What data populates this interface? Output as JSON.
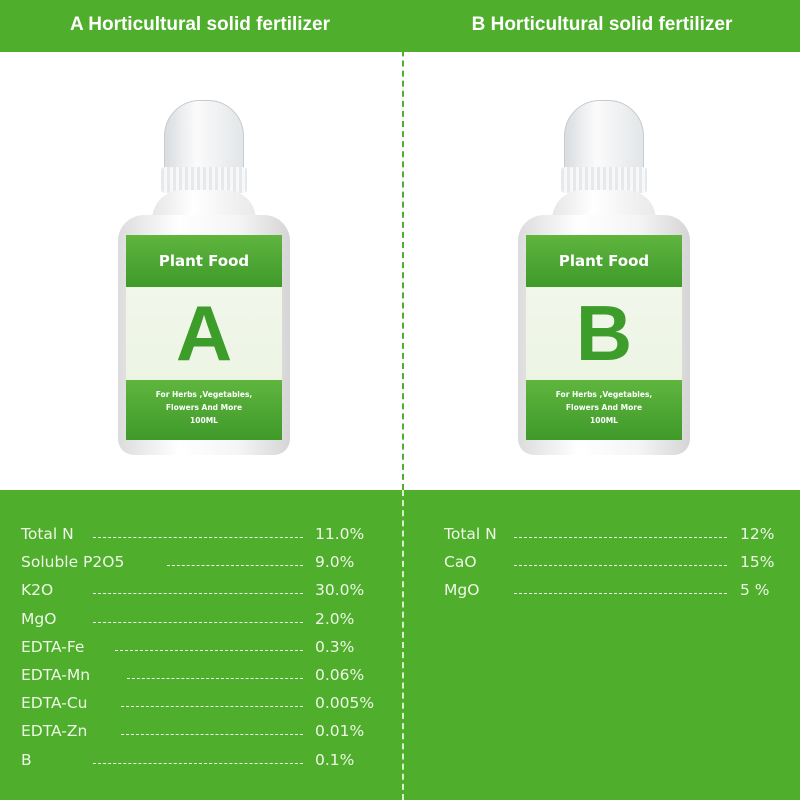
{
  "header": {
    "left_title": "A Horticultural solid fertilizer",
    "right_title": "B Horticultural solid fertilizer"
  },
  "colors": {
    "brand_green": "#4fae2c"
  },
  "products": [
    {
      "label_title": "Plant Food",
      "letter": "A",
      "line1": "For Herbs ,Vegetables,",
      "line2": "Flowers And More",
      "volume": "100ML"
    },
    {
      "label_title": "Plant Food",
      "letter": "B",
      "line1": "For Herbs ,Vegetables,",
      "line2": "Flowers And More",
      "volume": "100ML"
    }
  ],
  "specs_a": [
    {
      "name": "Total N",
      "value": "11.0%"
    },
    {
      "name": "Soluble P2O5",
      "value": "9.0%"
    },
    {
      "name": "K2O",
      "value": "30.0%"
    },
    {
      "name": "MgO",
      "value": "2.0%"
    },
    {
      "name": "EDTA-Fe",
      "value": "0.3%"
    },
    {
      "name": "EDTA-Mn",
      "value": "0.06%"
    },
    {
      "name": "EDTA-Cu",
      "value": "0.005%"
    },
    {
      "name": "EDTA-Zn",
      "value": "0.01%"
    },
    {
      "name": "B",
      "value": "0.1%"
    }
  ],
  "specs_b": [
    {
      "name": "Total N",
      "value": "12%"
    },
    {
      "name": "CaO",
      "value": "15%"
    },
    {
      "name": "MgO",
      "value": "5 %"
    }
  ]
}
